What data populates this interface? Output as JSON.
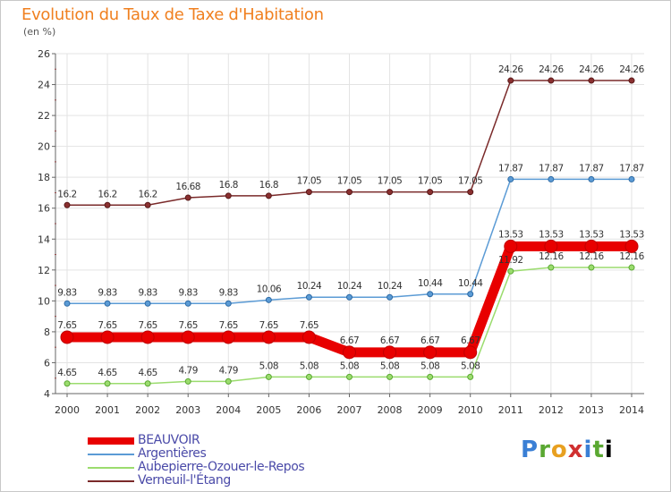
{
  "header": {
    "title": "Evolution du Taux de Taxe d'Habitation",
    "subtitle": "(en %)"
  },
  "logo": {
    "text": "Proxiti"
  },
  "chart_data": {
    "type": "line",
    "x": [
      2000,
      2001,
      2002,
      2003,
      2004,
      2005,
      2006,
      2007,
      2008,
      2009,
      2010,
      2011,
      2012,
      2013,
      2014
    ],
    "ylim": [
      4,
      26
    ],
    "yticks": [
      4,
      6,
      8,
      10,
      12,
      14,
      16,
      18,
      20,
      22,
      24,
      26
    ],
    "grid": true,
    "legend_position": "bottom-left",
    "series": [
      {
        "name": "BEAUVOIR",
        "color": "#e80000",
        "values": [
          7.65,
          7.65,
          7.65,
          7.65,
          7.65,
          7.65,
          7.65,
          6.67,
          6.67,
          6.67,
          6.67,
          13.53,
          13.53,
          13.53,
          13.53
        ],
        "labels": [
          "7.65",
          "7.65",
          "7.65",
          "7.65",
          "7.65",
          "7.65",
          "7.65",
          "6.67",
          "6.67",
          "6.67",
          "6.67",
          "13.53",
          "13.53",
          "13.53",
          "13.53"
        ]
      },
      {
        "name": "Argentières",
        "color": "#5b9bd5",
        "values": [
          9.83,
          9.83,
          9.83,
          9.83,
          9.83,
          10.06,
          10.24,
          10.24,
          10.24,
          10.44,
          10.44,
          17.87,
          17.87,
          17.87,
          17.87
        ],
        "labels": [
          "9.83",
          "9.83",
          "9.83",
          "9.83",
          "9.83",
          "10.06",
          "10.24",
          "10.24",
          "10.24",
          "10.44",
          "10.44",
          "17.87",
          "17.87",
          "17.87",
          "17.87"
        ]
      },
      {
        "name": "Aubepierre-Ozouer-le-Repos",
        "color": "#9bdc6e",
        "values": [
          4.65,
          4.65,
          4.65,
          4.79,
          4.79,
          5.08,
          5.08,
          5.08,
          5.08,
          5.08,
          5.08,
          11.92,
          12.16,
          12.16,
          12.16
        ],
        "labels": [
          "4.65",
          "4.65",
          "4.65",
          "4.79",
          "4.79",
          "5.08",
          "5.08",
          "5.08",
          "5.08",
          "5.08",
          "5.08",
          "11.92",
          "12.16",
          "12.16",
          "12.16"
        ]
      },
      {
        "name": "Verneuil-l'Étang",
        "color": "#7a2a2a",
        "values": [
          16.2,
          16.2,
          16.2,
          16.68,
          16.8,
          16.8,
          17.05,
          17.05,
          17.05,
          17.05,
          17.05,
          24.26,
          24.26,
          24.26,
          24.26
        ],
        "labels": [
          "16.2",
          "16.2",
          "16.2",
          "16.68",
          "16.8",
          "16.8",
          "17.05",
          "17.05",
          "17.05",
          "17.05",
          "17.05",
          "24.26",
          "24.26",
          "24.26",
          "24.26"
        ]
      }
    ]
  }
}
